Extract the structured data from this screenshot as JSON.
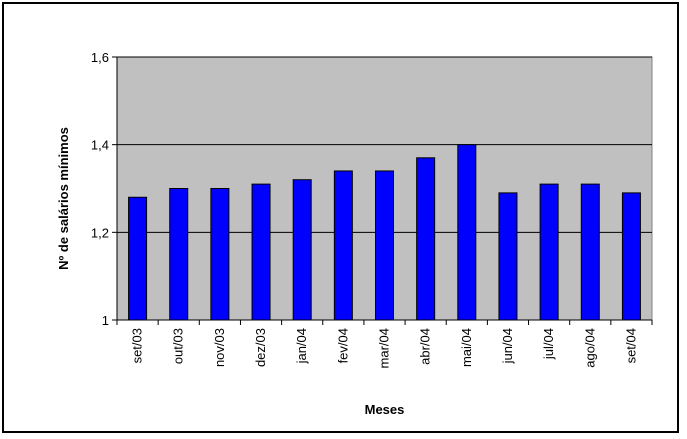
{
  "chart_data": {
    "type": "bar",
    "title": "",
    "xlabel": "Meses",
    "ylabel": "Nº de salários mínimos",
    "categories": [
      "set/03",
      "out/03",
      "nov/03",
      "dez/03",
      "jan/04",
      "fev/04",
      "mar/04",
      "abr/04",
      "mai/04",
      "jun/04",
      "jul/04",
      "ago/04",
      "set/04"
    ],
    "values": [
      1.28,
      1.3,
      1.3,
      1.31,
      1.32,
      1.34,
      1.34,
      1.37,
      1.4,
      1.29,
      1.31,
      1.31,
      1.29
    ],
    "ylim": [
      1,
      1.6
    ],
    "yticks": [
      1,
      1.2,
      1.4,
      1.6
    ],
    "ytick_labels": [
      "1",
      "1,2",
      "1,4",
      "1,6"
    ],
    "grid": true,
    "legend": "none",
    "colors": {
      "bar_fill": "#0000FF",
      "plot_background": "#C0C0C0",
      "gridline": "#000000"
    }
  }
}
